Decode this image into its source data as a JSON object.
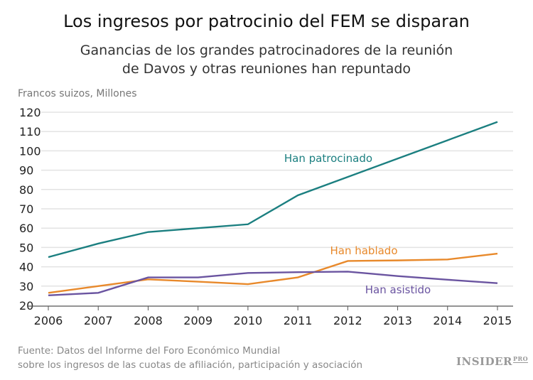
{
  "chart_data": {
    "type": "line",
    "title": "Los ingresos por patrocinio del FEM se disparan",
    "subtitle": [
      "Ganancias de los grandes patrocinadores de la reunión",
      "de Davos y otras reuniones han repuntado"
    ],
    "ylabel": "Francos suizos, Millones",
    "xlabel": "",
    "ylim": [
      20,
      120
    ],
    "yticks": [
      20,
      30,
      40,
      50,
      60,
      70,
      80,
      90,
      100,
      110,
      120
    ],
    "x": [
      2006,
      2007,
      2008,
      2009,
      2010,
      2011,
      2012,
      2013,
      2014,
      2015
    ],
    "grid": true,
    "series": [
      {
        "name": "Han patrocinado",
        "color": "#1b7f80",
        "values": [
          45,
          52,
          58,
          60,
          62,
          77,
          86.5,
          96,
          105.5,
          115
        ]
      },
      {
        "name": "Han hablado",
        "color": "#e8892b",
        "values": [
          26.5,
          30,
          33.5,
          32.3,
          31,
          34.5,
          43,
          43.3,
          43.8,
          46.8
        ]
      },
      {
        "name": "Han asistido",
        "color": "#6a54a0",
        "values": [
          25.2,
          26.5,
          34.5,
          34.5,
          36.8,
          37.2,
          37.5,
          35.2,
          33.3,
          31.5
        ]
      }
    ]
  },
  "source": [
    "Fuente: Datos del Informe del Foro Económico Mundial",
    "sobre los ingresos de las cuotas de afiliación, participación y asociación"
  ],
  "logo": {
    "text": "INSIDER",
    "suffix": "PRO"
  }
}
